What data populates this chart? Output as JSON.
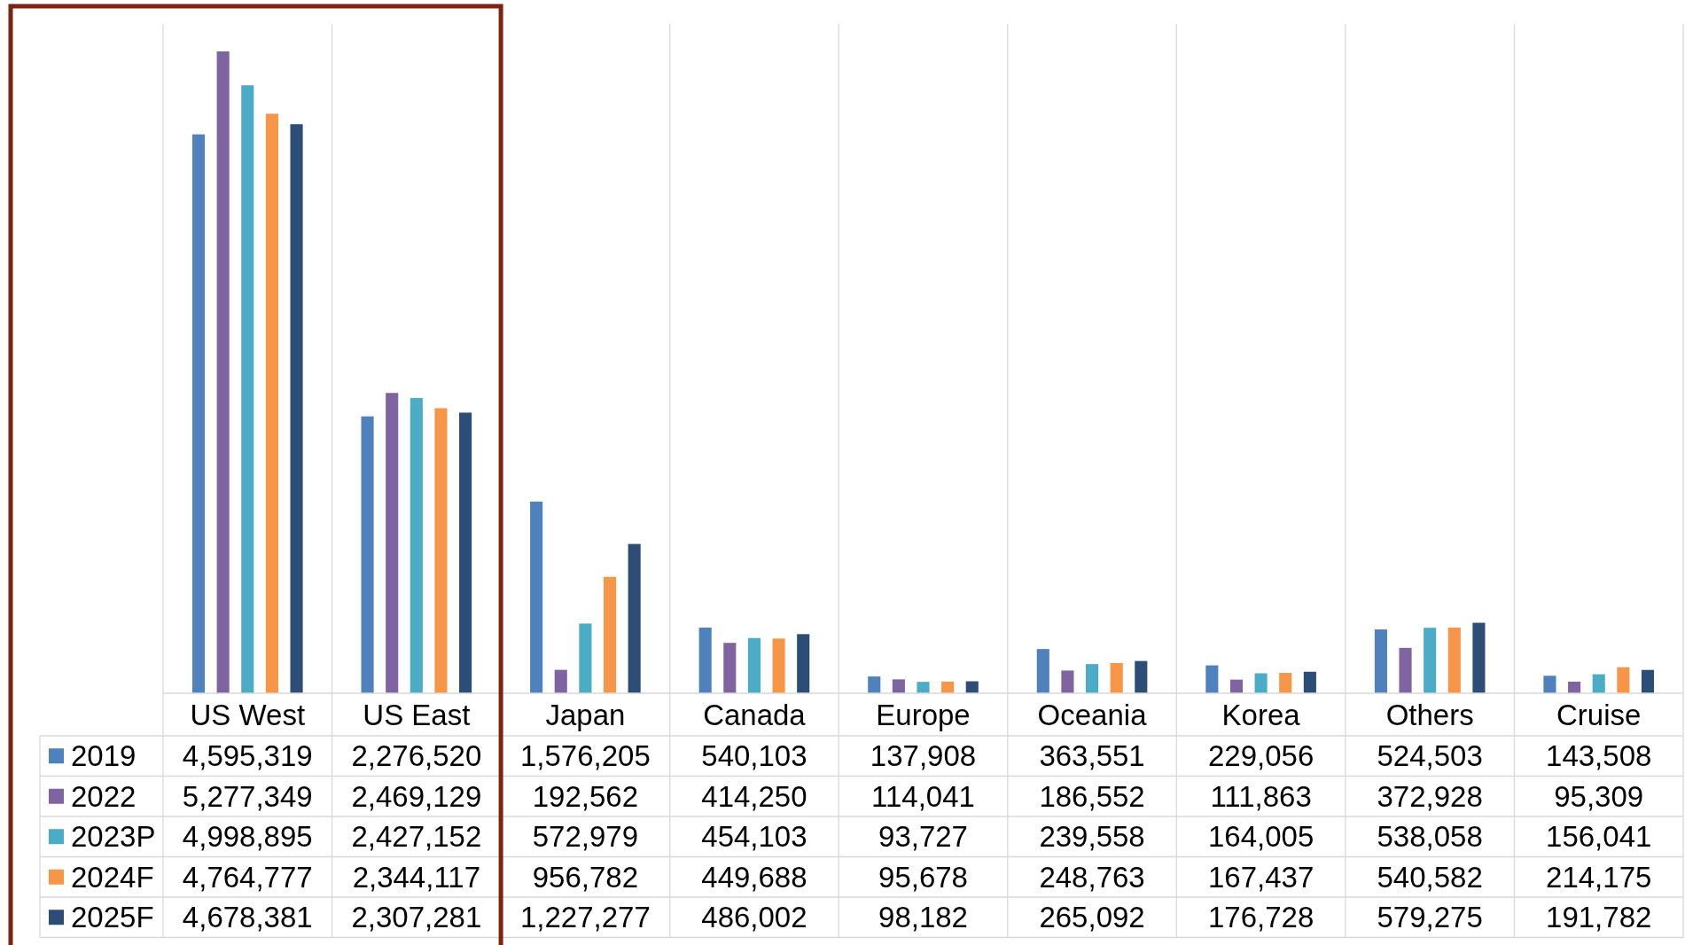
{
  "chart_data": {
    "type": "bar",
    "categories": [
      "US West",
      "US East",
      "Japan",
      "Canada",
      "Europe",
      "Oceania",
      "Korea",
      "Others",
      "Cruise"
    ],
    "series": [
      {
        "name": "2019",
        "color": "#4f81bd",
        "values": [
          4595319,
          2276520,
          1576205,
          540103,
          137908,
          363551,
          229056,
          524503,
          143508
        ],
        "value_labels": [
          "4,595,319",
          "2,276,520",
          "1,576,205",
          "540,103",
          "137,908",
          "363,551",
          "229,056",
          "524,503",
          "143,508"
        ]
      },
      {
        "name": "2022",
        "color": "#8064a2",
        "values": [
          5277349,
          2469129,
          192562,
          414250,
          114041,
          186552,
          111863,
          372928,
          95309
        ],
        "value_labels": [
          "5,277,349",
          "2,469,129",
          "192,562",
          "414,250",
          "114,041",
          "186,552",
          "111,863",
          "372,928",
          "95,309"
        ]
      },
      {
        "name": "2023P",
        "color": "#4bacc6",
        "values": [
          4998895,
          2427152,
          572979,
          454103,
          93727,
          239558,
          164005,
          538058,
          156041
        ],
        "value_labels": [
          "4,998,895",
          "2,427,152",
          "572,979",
          "454,103",
          "93,727",
          "239,558",
          "164,005",
          "538,058",
          "156,041"
        ]
      },
      {
        "name": "2024F",
        "color": "#f79646",
        "values": [
          4764777,
          2344117,
          956782,
          449688,
          95678,
          248763,
          167437,
          540582,
          214175
        ],
        "value_labels": [
          "4,764,777",
          "2,344,117",
          "956,782",
          "449,688",
          "95,678",
          "248,763",
          "167,437",
          "540,582",
          "214,175"
        ]
      },
      {
        "name": "2025F",
        "color": "#2c4d75",
        "values": [
          4678381,
          2307281,
          1227277,
          486002,
          98182,
          265092,
          176728,
          579275,
          191782
        ],
        "value_labels": [
          "4,678,381",
          "2,307,281",
          "1,227,277",
          "486,002",
          "98,182",
          "265,092",
          "176,728",
          "579,275",
          "191,782"
        ]
      }
    ],
    "tick_labels": "x",
    "grid": "x",
    "legend": "bottom left"
  }
}
